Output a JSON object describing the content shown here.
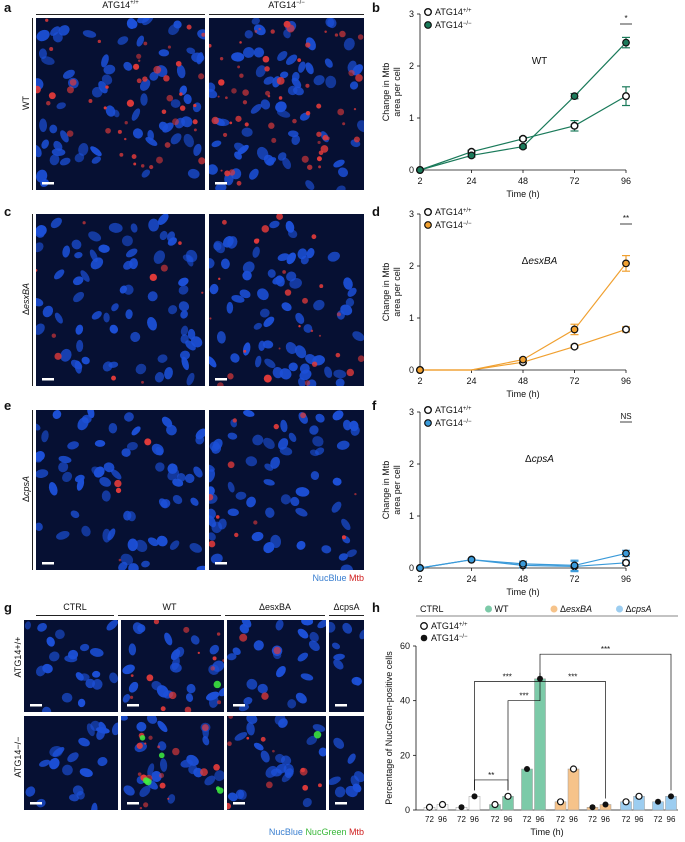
{
  "panels": {
    "a": "a",
    "b": "b",
    "c": "c",
    "d": "d",
    "e": "e",
    "f": "f",
    "g": "g",
    "h": "h"
  },
  "columns": {
    "wt": "ATG14",
    "wt_sup": "+/+",
    "ko": "ATG14",
    "ko_sup": "−/−"
  },
  "rows": {
    "a": "WT",
    "c_delta": "Δ",
    "c": "esxBA",
    "e_delta": "Δ",
    "e": "cpsA"
  },
  "stain_legend": {
    "nucblue": "NucBlue",
    "mtb": "Mtb",
    "nucgreen": "NucGreen"
  },
  "g_columns": {
    "ctrl": "CTRL",
    "wt": "WT",
    "esx": "ΔesxBA",
    "cps": "ΔcpsA"
  },
  "g_rows": {
    "wt": "ATG14+/+",
    "ko": "ATG14−/−"
  },
  "colors": {
    "wt_series": "#1a7a5a",
    "esx_series": "#f0a030",
    "cps_series": "#3a9ad9",
    "wt_bar": "#7ccaa8",
    "esx_bar": "#f6c38a",
    "cps_bar": "#9ccdf0"
  },
  "chart_data": [
    {
      "panel": "b",
      "type": "line",
      "annotation": "WT",
      "ylabel": "Change in Mtb area per cell",
      "xlabel": "Time (h)",
      "x": [
        "2",
        "24",
        "48",
        "72",
        "96"
      ],
      "ylim": [
        0,
        3
      ],
      "yticks": [
        0,
        1,
        2,
        3
      ],
      "series": [
        {
          "name": "ATG14+/+",
          "values": [
            0,
            0.35,
            0.6,
            0.85,
            1.42
          ],
          "err": [
            0,
            0.03,
            0.03,
            0.1,
            0.18
          ]
        },
        {
          "name": "ATG14−/−",
          "values": [
            0,
            0.28,
            0.45,
            1.42,
            2.45
          ],
          "err": [
            0,
            0.03,
            0.03,
            0.05,
            0.1
          ]
        }
      ],
      "significance": "*"
    },
    {
      "panel": "d",
      "type": "line",
      "annotation": "ΔesxBA",
      "ylabel": "Change in Mtb area per cell",
      "xlabel": "Time (h)",
      "x": [
        "2",
        "24",
        "48",
        "72",
        "96"
      ],
      "ylim": [
        0,
        3
      ],
      "yticks": [
        0,
        1,
        2,
        3
      ],
      "series": [
        {
          "name": "ATG14+/+",
          "values": [
            0,
            -0.05,
            0.15,
            0.45,
            0.78
          ],
          "err": [
            0,
            0,
            0.02,
            0.03,
            0.05
          ]
        },
        {
          "name": "ATG14−/−",
          "values": [
            0,
            -0.05,
            0.2,
            0.78,
            2.05
          ],
          "err": [
            0,
            0,
            0.03,
            0.1,
            0.15
          ]
        }
      ],
      "significance": "**"
    },
    {
      "panel": "f",
      "type": "line",
      "annotation": "ΔcpsA",
      "ylabel": "Change in Mtb area per cell",
      "xlabel": "Time (h)",
      "x": [
        "2",
        "24",
        "48",
        "72",
        "96"
      ],
      "ylim": [
        0,
        3
      ],
      "yticks": [
        0,
        1,
        2,
        3
      ],
      "series": [
        {
          "name": "ATG14+/+",
          "values": [
            0,
            0.16,
            0.05,
            0.03,
            0.1
          ],
          "err": [
            0,
            0.02,
            0.05,
            0.1,
            0.05
          ]
        },
        {
          "name": "ATG14−/−",
          "values": [
            0,
            0.16,
            0.08,
            0.05,
            0.28
          ],
          "err": [
            0,
            0.02,
            0.05,
            0.1,
            0.06
          ]
        }
      ],
      "significance": "NS"
    },
    {
      "panel": "h",
      "type": "bar",
      "ylabel": "Percentage of NucGreen-positive cells",
      "xlabel": "Time (h)",
      "ylim": [
        0,
        60
      ],
      "yticks": [
        0,
        20,
        40,
        60
      ],
      "groups": [
        "CTRL",
        "WT",
        "ΔesxBA",
        "ΔcpsA"
      ],
      "genotypes": [
        "ATG14+/+",
        "ATG14−/−"
      ],
      "times": [
        "72",
        "96"
      ],
      "values": [
        [
          [
            1,
            2
          ],
          [
            1,
            5
          ]
        ],
        [
          [
            2,
            5
          ],
          [
            15,
            48
          ]
        ],
        [
          [
            3,
            15
          ],
          [
            1,
            2
          ]
        ],
        [
          [
            3,
            5
          ],
          [
            3,
            5
          ]
        ]
      ],
      "significance": [
        "**",
        "***",
        "***",
        "***",
        "***"
      ]
    }
  ]
}
